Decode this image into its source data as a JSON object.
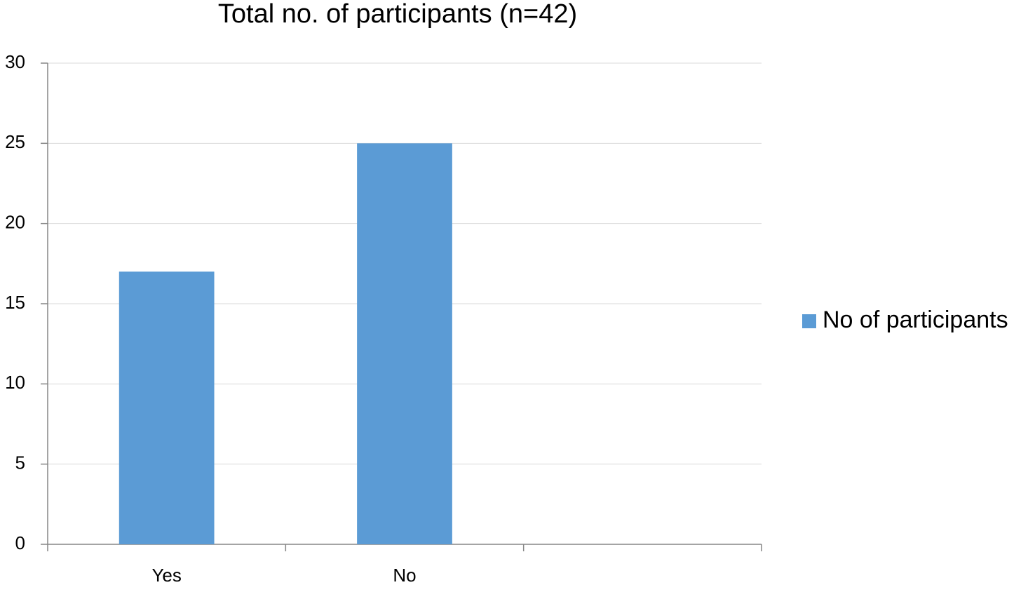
{
  "chart_data": {
    "type": "bar",
    "title": "Total no. of participants (n=42)",
    "categories": [
      "Yes",
      "No",
      null
    ],
    "series": [
      {
        "name": "No of participants",
        "color": "#5b9bd5",
        "values": [
          17,
          25,
          null
        ]
      }
    ],
    "ylim": [
      0,
      30
    ],
    "yticks": [
      0,
      5,
      10,
      15,
      20,
      25,
      30
    ],
    "grid": true,
    "legend": "right"
  }
}
